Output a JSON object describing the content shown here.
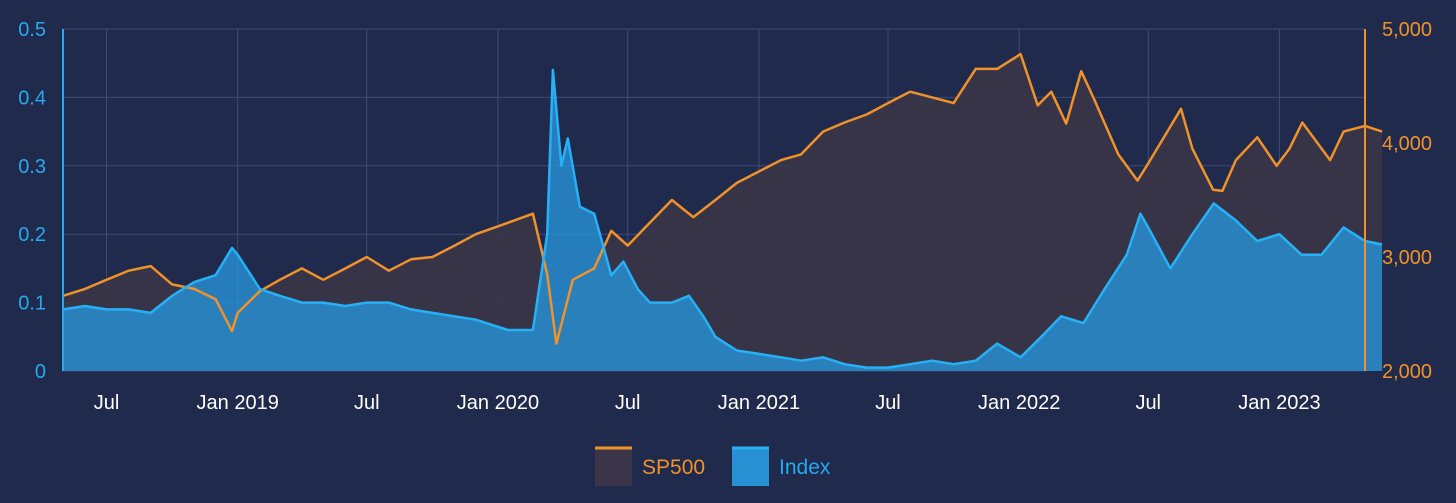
{
  "chart_data": {
    "type": "area",
    "x_start": "2018-05",
    "x_end": "2023-05",
    "x_ticks": [
      {
        "label": "Jul",
        "date": "2018-07"
      },
      {
        "label": "Jan 2019",
        "date": "2019-01"
      },
      {
        "label": "Jul",
        "date": "2019-07"
      },
      {
        "label": "Jan 2020",
        "date": "2020-01"
      },
      {
        "label": "Jul",
        "date": "2020-07"
      },
      {
        "label": "Jan 2021",
        "date": "2021-01"
      },
      {
        "label": "Jul",
        "date": "2021-07"
      },
      {
        "label": "Jan 2022",
        "date": "2022-01"
      },
      {
        "label": "Jul",
        "date": "2022-07"
      },
      {
        "label": "Jan 2023",
        "date": "2023-01"
      }
    ],
    "y_left": {
      "min": 0,
      "max": 0.5,
      "ticks": [
        "0",
        "0.1",
        "0.2",
        "0.3",
        "0.4",
        "0.5"
      ]
    },
    "y_right": {
      "min": 2000,
      "max": 5000,
      "ticks": [
        "2,000",
        "3,000",
        "4,000",
        "5,000"
      ]
    },
    "grid": true,
    "legend_position": "bottom-center",
    "series": [
      {
        "name": "SP500",
        "axis": "right",
        "color": "#f0922a",
        "fill": "#3a3548",
        "points": [
          [
            "2018-05-01",
            2660
          ],
          [
            "2018-06-01",
            2720
          ],
          [
            "2018-07-01",
            2800
          ],
          [
            "2018-08-01",
            2880
          ],
          [
            "2018-09-01",
            2920
          ],
          [
            "2018-10-01",
            2760
          ],
          [
            "2018-11-01",
            2720
          ],
          [
            "2018-12-01",
            2630
          ],
          [
            "2018-12-24",
            2350
          ],
          [
            "2019-01-01",
            2510
          ],
          [
            "2019-02-01",
            2700
          ],
          [
            "2019-03-01",
            2800
          ],
          [
            "2019-04-01",
            2900
          ],
          [
            "2019-05-01",
            2800
          ],
          [
            "2019-06-01",
            2900
          ],
          [
            "2019-07-01",
            3000
          ],
          [
            "2019-08-01",
            2880
          ],
          [
            "2019-09-01",
            2980
          ],
          [
            "2019-10-01",
            3000
          ],
          [
            "2019-11-01",
            3100
          ],
          [
            "2019-12-01",
            3200
          ],
          [
            "2020-01-15",
            3300
          ],
          [
            "2020-02-19",
            3380
          ],
          [
            "2020-03-10",
            2850
          ],
          [
            "2020-03-23",
            2240
          ],
          [
            "2020-04-15",
            2800
          ],
          [
            "2020-05-15",
            2900
          ],
          [
            "2020-06-08",
            3230
          ],
          [
            "2020-07-01",
            3100
          ],
          [
            "2020-08-01",
            3300
          ],
          [
            "2020-09-01",
            3500
          ],
          [
            "2020-10-01",
            3350
          ],
          [
            "2020-11-01",
            3500
          ],
          [
            "2020-12-01",
            3650
          ],
          [
            "2021-01-01",
            3750
          ],
          [
            "2021-02-01",
            3850
          ],
          [
            "2021-03-01",
            3900
          ],
          [
            "2021-04-01",
            4100
          ],
          [
            "2021-05-01",
            4180
          ],
          [
            "2021-06-01",
            4250
          ],
          [
            "2021-07-01",
            4350
          ],
          [
            "2021-08-01",
            4450
          ],
          [
            "2021-09-01",
            4400
          ],
          [
            "2021-10-01",
            4350
          ],
          [
            "2021-11-01",
            4650
          ],
          [
            "2021-12-01",
            4650
          ],
          [
            "2022-01-03",
            4780
          ],
          [
            "2022-01-27",
            4330
          ],
          [
            "2022-02-15",
            4450
          ],
          [
            "2022-03-08",
            4170
          ],
          [
            "2022-03-29",
            4630
          ],
          [
            "2022-04-15",
            4400
          ],
          [
            "2022-05-20",
            3900
          ],
          [
            "2022-06-16",
            3670
          ],
          [
            "2022-07-01",
            3820
          ],
          [
            "2022-08-16",
            4300
          ],
          [
            "2022-09-01",
            3950
          ],
          [
            "2022-09-30",
            3590
          ],
          [
            "2022-10-13",
            3580
          ],
          [
            "2022-11-01",
            3850
          ],
          [
            "2022-12-01",
            4050
          ],
          [
            "2022-12-28",
            3800
          ],
          [
            "2023-01-15",
            3950
          ],
          [
            "2023-02-02",
            4180
          ],
          [
            "2023-03-13",
            3850
          ],
          [
            "2023-04-01",
            4100
          ],
          [
            "2023-05-01",
            4150
          ],
          [
            "2023-05-25",
            4100
          ]
        ]
      },
      {
        "name": "Index",
        "axis": "left",
        "color": "#27b0f5",
        "fill": "#2791d4",
        "points": [
          [
            "2018-05-01",
            0.09
          ],
          [
            "2018-06-01",
            0.095
          ],
          [
            "2018-07-01",
            0.09
          ],
          [
            "2018-08-01",
            0.09
          ],
          [
            "2018-09-01",
            0.085
          ],
          [
            "2018-10-01",
            0.11
          ],
          [
            "2018-11-01",
            0.13
          ],
          [
            "2018-12-01",
            0.14
          ],
          [
            "2018-12-24",
            0.18
          ],
          [
            "2019-01-01",
            0.17
          ],
          [
            "2019-02-01",
            0.12
          ],
          [
            "2019-03-01",
            0.11
          ],
          [
            "2019-04-01",
            0.1
          ],
          [
            "2019-05-01",
            0.1
          ],
          [
            "2019-06-01",
            0.095
          ],
          [
            "2019-07-01",
            0.1
          ],
          [
            "2019-08-01",
            0.1
          ],
          [
            "2019-09-01",
            0.09
          ],
          [
            "2019-10-01",
            0.085
          ],
          [
            "2019-11-01",
            0.08
          ],
          [
            "2019-12-01",
            0.075
          ],
          [
            "2020-01-15",
            0.06
          ],
          [
            "2020-02-19",
            0.06
          ],
          [
            "2020-03-10",
            0.2
          ],
          [
            "2020-03-18",
            0.44
          ],
          [
            "2020-03-30",
            0.3
          ],
          [
            "2020-04-08",
            0.34
          ],
          [
            "2020-04-25",
            0.24
          ],
          [
            "2020-05-15",
            0.23
          ],
          [
            "2020-06-08",
            0.14
          ],
          [
            "2020-06-25",
            0.16
          ],
          [
            "2020-07-15",
            0.12
          ],
          [
            "2020-08-01",
            0.1
          ],
          [
            "2020-09-01",
            0.1
          ],
          [
            "2020-09-25",
            0.11
          ],
          [
            "2020-10-15",
            0.08
          ],
          [
            "2020-11-01",
            0.05
          ],
          [
            "2020-12-01",
            0.03
          ],
          [
            "2021-01-01",
            0.025
          ],
          [
            "2021-02-01",
            0.02
          ],
          [
            "2021-03-01",
            0.015
          ],
          [
            "2021-04-01",
            0.02
          ],
          [
            "2021-05-01",
            0.01
          ],
          [
            "2021-06-01",
            0.005
          ],
          [
            "2021-07-01",
            0.005
          ],
          [
            "2021-08-01",
            0.01
          ],
          [
            "2021-09-01",
            0.015
          ],
          [
            "2021-10-01",
            0.01
          ],
          [
            "2021-11-01",
            0.015
          ],
          [
            "2021-12-01",
            0.04
          ],
          [
            "2022-01-03",
            0.02
          ],
          [
            "2022-02-01",
            0.05
          ],
          [
            "2022-03-01",
            0.08
          ],
          [
            "2022-04-01",
            0.07
          ],
          [
            "2022-05-01",
            0.12
          ],
          [
            "2022-06-01",
            0.17
          ],
          [
            "2022-06-20",
            0.23
          ],
          [
            "2022-07-01",
            0.21
          ],
          [
            "2022-08-01",
            0.15
          ],
          [
            "2022-09-01",
            0.2
          ],
          [
            "2022-10-01",
            0.245
          ],
          [
            "2022-11-01",
            0.22
          ],
          [
            "2022-12-01",
            0.19
          ],
          [
            "2023-01-01",
            0.2
          ],
          [
            "2023-02-01",
            0.17
          ],
          [
            "2023-03-01",
            0.17
          ],
          [
            "2023-04-01",
            0.21
          ],
          [
            "2023-05-01",
            0.19
          ],
          [
            "2023-05-25",
            0.185
          ]
        ]
      }
    ]
  }
}
